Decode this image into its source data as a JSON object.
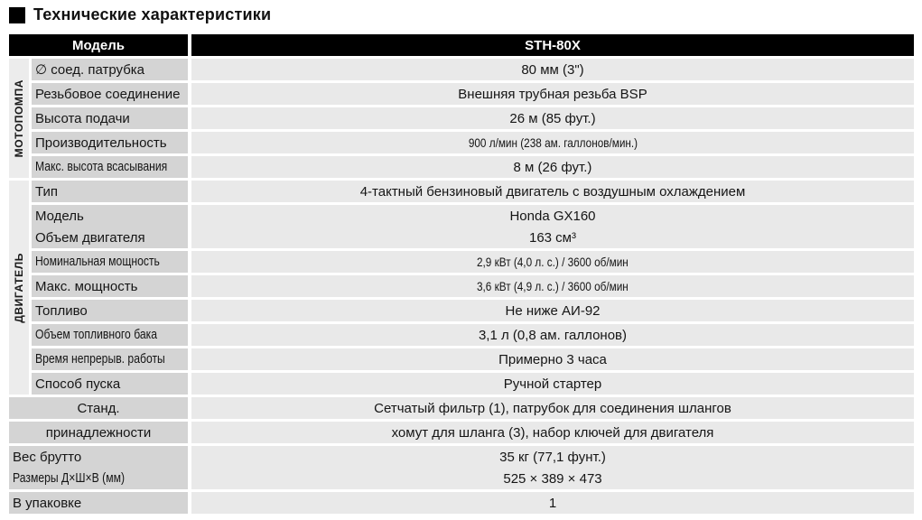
{
  "title": "Технические характеристики",
  "colors": {
    "header_bg": "#000000",
    "label_cell": "#d4d4d4",
    "value_cell": "#e9e9e9",
    "section_strip": "#ececec"
  },
  "table": {
    "header": {
      "model_label": "Модель",
      "model_value": "STH-80X"
    },
    "sections": [
      {
        "group": "МОТОПОМПА",
        "rows": [
          {
            "label": "∅ соед. патрубка",
            "value": "80 мм (3\")"
          },
          {
            "label": "Резьбовое соединение",
            "value": "Внешняя трубная резьба BSP"
          },
          {
            "label": "Высота подачи",
            "value": "26 м (85 фут.)"
          },
          {
            "label": "Производительность",
            "value": "900 л/мин (238 ам. галлонов/мин.)",
            "value_condensed": true
          },
          {
            "label": "Макс. высота всасывания",
            "value": "8 м (26 фут.)",
            "label_condensed": true
          }
        ]
      },
      {
        "group": "ДВИГАТЕЛЬ",
        "rows": [
          {
            "label": "Тип",
            "value": "4-тактный бензиновый двигатель с воздушным охлаждением"
          },
          {
            "merged": true,
            "lines": [
              {
                "label": "Модель",
                "value": "Honda GX160"
              },
              {
                "label": "Объем двигателя",
                "value": "163 см³"
              }
            ]
          },
          {
            "label": "Номинальная мощность",
            "value": "2,9 кВт (4,0 л. с.) / 3600 об/мин",
            "label_condensed": true,
            "value_condensed": true
          },
          {
            "label": "Макс. мощность",
            "value": "3,6 кВт (4,9 л. с.) / 3600 об/мин",
            "value_condensed": true
          },
          {
            "label": "Топливо",
            "value": "Не ниже АИ-92"
          },
          {
            "label": "Объем топливного бака",
            "value": "3,1 л (0,8 ам. галлонов)",
            "label_condensed": true
          },
          {
            "label": "Время непрерыв. работы",
            "value": "Примерно 3 часа",
            "label_condensed": true
          },
          {
            "label": "Способ пуска",
            "value": "Ручной стартер"
          }
        ]
      },
      {
        "group": "",
        "rows": [
          {
            "label": "Станд.",
            "value": "Сетчатый фильтр (1), патрубок для соединения шлангов",
            "label_centered": true
          },
          {
            "label": "принадлежности",
            "value": "хомут для шланга (3), набор ключей для двигателя",
            "label_centered": true
          },
          {
            "merged": true,
            "lines": [
              {
                "label": "Вес брутто",
                "value": "35 кг (77,1 фунт.)"
              },
              {
                "label": "Размеры Д×Ш×В (мм)",
                "value": "525 × 389 × 473",
                "label_condensed": true
              }
            ]
          },
          {
            "label": "В упаковке",
            "value": "1"
          }
        ]
      }
    ]
  }
}
